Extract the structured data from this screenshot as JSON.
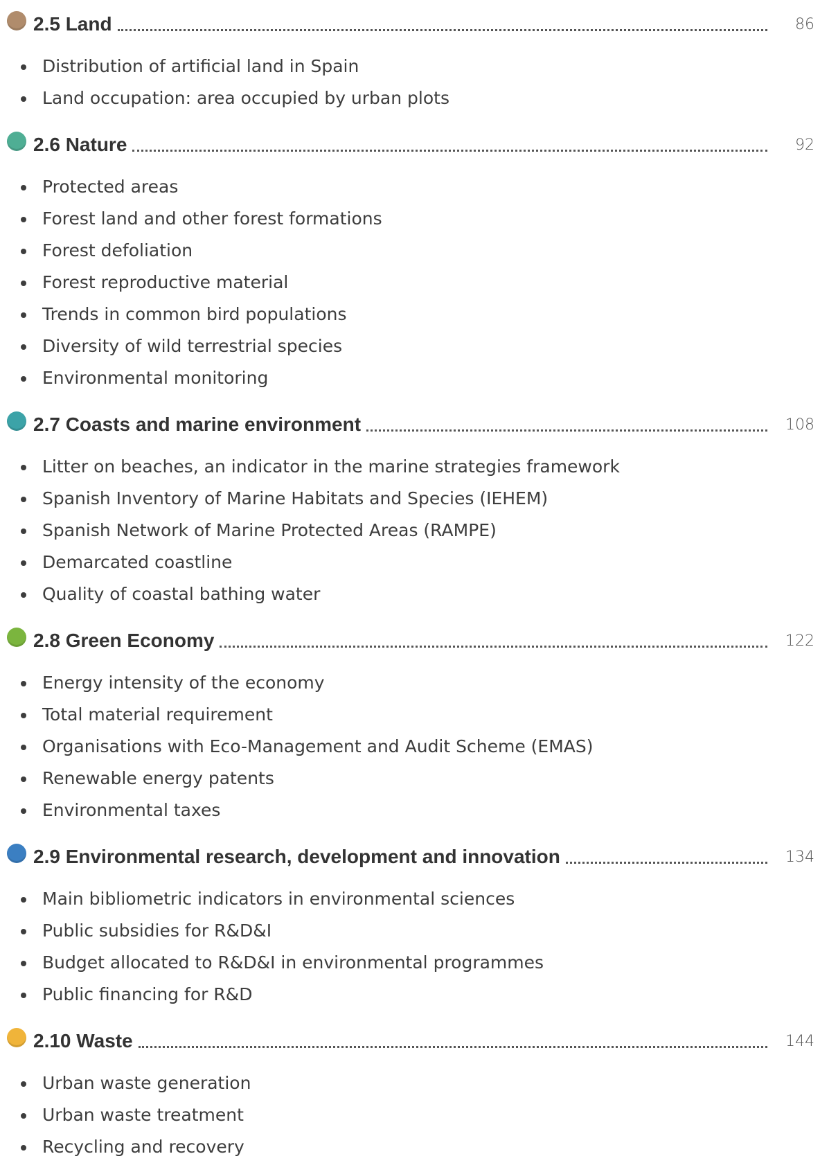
{
  "sections": [
    {
      "title": "2.5 Land",
      "page": 86,
      "items": [
        "Distribution of artificial land in Spain",
        "Land occupation: area occupied by urban plots"
      ]
    },
    {
      "title": "2.6 Nature",
      "page": 92,
      "items": [
        "Protected areas",
        "Forest land and other forest formations",
        "Forest defoliation",
        "Forest reproductive material",
        "Trends in common bird populations",
        "Diversity of wild terrestrial species",
        "Environmental monitoring"
      ]
    },
    {
      "title": "2.7 Coasts and marine environment",
      "page": 108,
      "items": [
        "Litter on beaches, an indicator in the marine strategies framework",
        "Spanish Inventory of Marine Habitats and Species (IEHEM)",
        "Spanish Network of Marine Protected Areas (RAMPE)",
        "Demarcated coastline",
        "Quality of coastal bathing water"
      ]
    },
    {
      "title": "2.8 Green Economy",
      "page": 122,
      "items": [
        "Energy intensity of the economy",
        "Total material requirement",
        "Organisations with Eco-Management and Audit Scheme (EMAS)",
        "Renewable energy patents",
        "Environmental taxes"
      ]
    },
    {
      "title": "2.9 Environmental research, development and innovation",
      "page": 134,
      "items": [
        "Main bibliometric indicators in environmental sciences",
        "Public subsidies for R&D&I",
        "Budget allocated to R&D&I in environmental programmes",
        "Public financing for R&D"
      ]
    },
    {
      "title": "2.10 Waste",
      "page": 144,
      "items": [
        "Urban waste generation",
        "Urban waste treatment",
        "Recycling and recovery"
      ]
    }
  ]
}
